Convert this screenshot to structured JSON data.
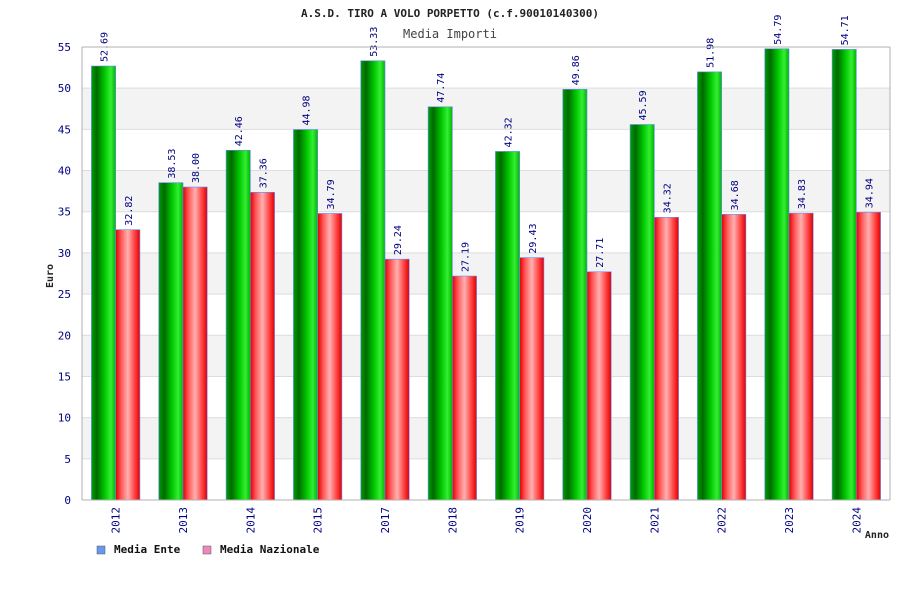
{
  "chart_data": {
    "type": "bar",
    "title": "A.S.D. TIRO A VOLO PORPETTO (c.f.90010140300)",
    "subtitle": "Media Importi",
    "xlabel": "Anno",
    "ylabel": "Euro",
    "ylim": [
      0,
      55
    ],
    "yticks": [
      0,
      5,
      10,
      15,
      20,
      25,
      30,
      35,
      40,
      45,
      50,
      55
    ],
    "categories": [
      "2012",
      "2013",
      "2014",
      "2015",
      "2017",
      "2018",
      "2019",
      "2020",
      "2021",
      "2022",
      "2023",
      "2024"
    ],
    "series": [
      {
        "name": "Media Ente",
        "values": [
          52.69,
          38.53,
          42.46,
          44.98,
          53.33,
          47.74,
          42.32,
          49.86,
          45.59,
          51.98,
          54.79,
          54.71
        ],
        "labels": [
          "52.69",
          "38.53",
          "42.46",
          "44.98",
          "53.33",
          "47.74",
          "42.32",
          "49.86",
          "45.59",
          "51.98",
          "54.79",
          "54.71"
        ],
        "color": "#00b000",
        "legend_color": "#6699ee"
      },
      {
        "name": "Media Nazionale",
        "values": [
          32.82,
          38.0,
          37.36,
          34.79,
          29.24,
          27.19,
          29.43,
          27.71,
          34.32,
          34.68,
          34.83,
          34.94
        ],
        "labels": [
          "32.82",
          "38.00",
          "37.36",
          "34.79",
          "29.24",
          "27.19",
          "29.43",
          "27.71",
          "34.32",
          "34.68",
          "34.83",
          "34.94"
        ],
        "color": "#ee0000",
        "legend_color": "#ee88bb"
      }
    ],
    "grid": true,
    "legend_position": "bottom-left"
  }
}
